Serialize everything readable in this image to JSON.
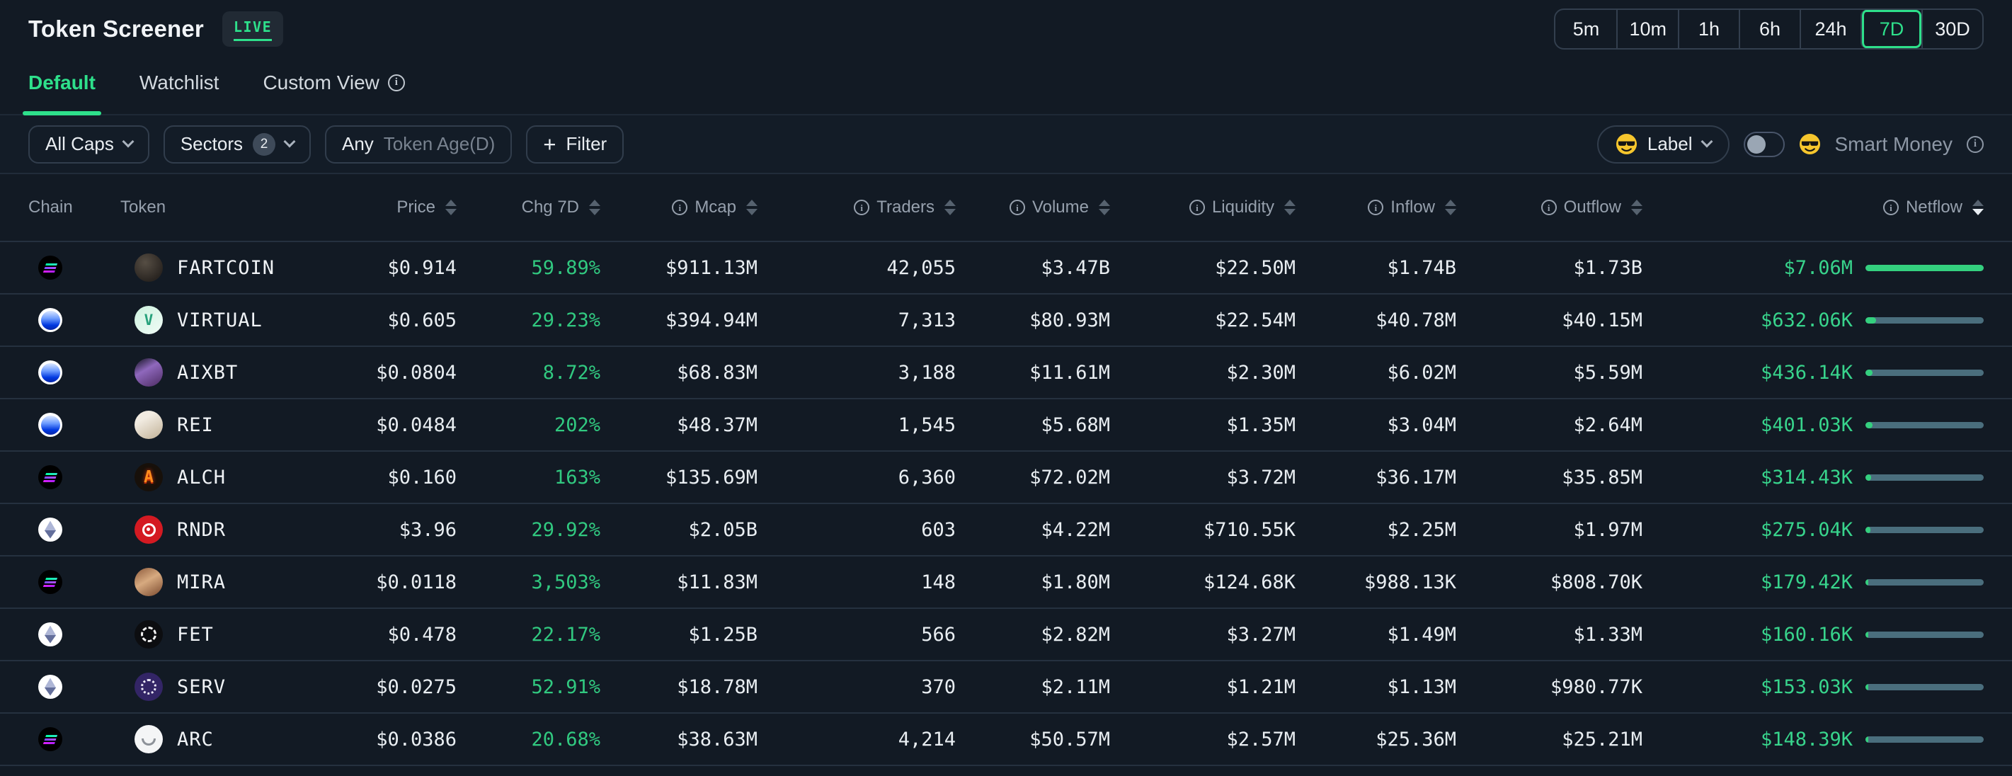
{
  "header": {
    "title": "Token Screener",
    "live_badge": "LIVE"
  },
  "timeframes": {
    "options": [
      "5m",
      "10m",
      "1h",
      "6h",
      "24h",
      "7D",
      "30D"
    ],
    "selected": "7D"
  },
  "tabs": [
    {
      "id": "default",
      "label": "Default",
      "active": true,
      "info": false
    },
    {
      "id": "watchlist",
      "label": "Watchlist",
      "active": false,
      "info": false
    },
    {
      "id": "custom-view",
      "label": "Custom View",
      "active": false,
      "info": true
    }
  ],
  "filters": {
    "all_caps": {
      "label": "All Caps"
    },
    "sectors": {
      "label": "Sectors",
      "count": "2"
    },
    "token_age": {
      "value": "Any",
      "label": "Token Age(D)"
    },
    "add_filter": {
      "plus": "+",
      "label": "Filter"
    },
    "label_dropdown": {
      "label": "Label",
      "emoji": "sunglasses"
    },
    "smart_money": {
      "label": "Smart Money",
      "emoji": "sunglasses",
      "toggle_on": false
    }
  },
  "table": {
    "columns": [
      {
        "key": "chain",
        "label": "Chain",
        "align": "left",
        "sortable": false,
        "info": false
      },
      {
        "key": "token",
        "label": "Token",
        "align": "left",
        "sortable": false,
        "info": false
      },
      {
        "key": "price",
        "label": "Price",
        "align": "right",
        "sortable": true,
        "info": false
      },
      {
        "key": "chg",
        "label": "Chg 7D",
        "align": "right",
        "sortable": true,
        "info": false
      },
      {
        "key": "mcap",
        "label": "Mcap",
        "align": "right",
        "sortable": true,
        "info": true
      },
      {
        "key": "traders",
        "label": "Traders",
        "align": "right",
        "sortable": true,
        "info": true
      },
      {
        "key": "volume",
        "label": "Volume",
        "align": "right",
        "sortable": true,
        "info": true
      },
      {
        "key": "liquidity",
        "label": "Liquidity",
        "align": "right",
        "sortable": true,
        "info": true
      },
      {
        "key": "inflow",
        "label": "Inflow",
        "align": "right",
        "sortable": true,
        "info": true
      },
      {
        "key": "outflow",
        "label": "Outflow",
        "align": "right",
        "sortable": true,
        "info": true
      },
      {
        "key": "netflow",
        "label": "Netflow",
        "align": "right",
        "sortable": true,
        "info": true,
        "sorted": "desc"
      }
    ],
    "rows": [
      {
        "chain": "solana",
        "token": "FARTCOIN",
        "icon": "fartcoin",
        "price": "$0.914",
        "chg": "59.89%",
        "mcap": "$911.13M",
        "traders": "42,055",
        "volume": "$3.47B",
        "liquidity": "$22.50M",
        "inflow": "$1.74B",
        "outflow": "$1.73B",
        "netflow": "$7.06M",
        "netflow_pct": 100
      },
      {
        "chain": "base",
        "token": "VIRTUAL",
        "icon": "virtual",
        "price": "$0.605",
        "chg": "29.23%",
        "mcap": "$394.94M",
        "traders": "7,313",
        "volume": "$80.93M",
        "liquidity": "$22.54M",
        "inflow": "$40.78M",
        "outflow": "$40.15M",
        "netflow": "$632.06K",
        "netflow_pct": 9
      },
      {
        "chain": "base",
        "token": "AIXBT",
        "icon": "aixbt",
        "price": "$0.0804",
        "chg": "8.72%",
        "mcap": "$68.83M",
        "traders": "3,188",
        "volume": "$11.61M",
        "liquidity": "$2.30M",
        "inflow": "$6.02M",
        "outflow": "$5.59M",
        "netflow": "$436.14K",
        "netflow_pct": 6.2
      },
      {
        "chain": "base",
        "token": "REI",
        "icon": "rei",
        "price": "$0.0484",
        "chg": "202%",
        "mcap": "$48.37M",
        "traders": "1,545",
        "volume": "$5.68M",
        "liquidity": "$1.35M",
        "inflow": "$3.04M",
        "outflow": "$2.64M",
        "netflow": "$401.03K",
        "netflow_pct": 5.7
      },
      {
        "chain": "solana",
        "token": "ALCH",
        "icon": "alch",
        "price": "$0.160",
        "chg": "163%",
        "mcap": "$135.69M",
        "traders": "6,360",
        "volume": "$72.02M",
        "liquidity": "$3.72M",
        "inflow": "$36.17M",
        "outflow": "$35.85M",
        "netflow": "$314.43K",
        "netflow_pct": 4.5
      },
      {
        "chain": "ethereum",
        "token": "RNDR",
        "icon": "rndr",
        "price": "$3.96",
        "chg": "29.92%",
        "mcap": "$2.05B",
        "traders": "603",
        "volume": "$4.22M",
        "liquidity": "$710.55K",
        "inflow": "$2.25M",
        "outflow": "$1.97M",
        "netflow": "$275.04K",
        "netflow_pct": 3.9
      },
      {
        "chain": "solana",
        "token": "MIRA",
        "icon": "mira",
        "price": "$0.0118",
        "chg": "3,503%",
        "mcap": "$11.83M",
        "traders": "148",
        "volume": "$1.80M",
        "liquidity": "$124.68K",
        "inflow": "$988.13K",
        "outflow": "$808.70K",
        "netflow": "$179.42K",
        "netflow_pct": 2.5
      },
      {
        "chain": "ethereum",
        "token": "FET",
        "icon": "fet",
        "price": "$0.478",
        "chg": "22.17%",
        "mcap": "$1.25B",
        "traders": "566",
        "volume": "$2.82M",
        "liquidity": "$3.27M",
        "inflow": "$1.49M",
        "outflow": "$1.33M",
        "netflow": "$160.16K",
        "netflow_pct": 2.3
      },
      {
        "chain": "ethereum",
        "token": "SERV",
        "icon": "serv",
        "price": "$0.0275",
        "chg": "52.91%",
        "mcap": "$18.78M",
        "traders": "370",
        "volume": "$2.11M",
        "liquidity": "$1.21M",
        "inflow": "$1.13M",
        "outflow": "$980.77K",
        "netflow": "$153.03K",
        "netflow_pct": 2.2
      },
      {
        "chain": "solana",
        "token": "ARC",
        "icon": "arc",
        "price": "$0.0386",
        "chg": "20.68%",
        "mcap": "$38.63M",
        "traders": "4,214",
        "volume": "$50.57M",
        "liquidity": "$2.57M",
        "inflow": "$25.36M",
        "outflow": "$25.21M",
        "netflow": "$148.39K",
        "netflow_pct": 2.1
      }
    ]
  },
  "colors": {
    "accent": "#2ee08b",
    "positive_text": "#31c980",
    "netflow_text": "#38d48c",
    "bar_fill": "#34d07e",
    "bar_track": "#4a6e7d",
    "background": "#121a24"
  }
}
